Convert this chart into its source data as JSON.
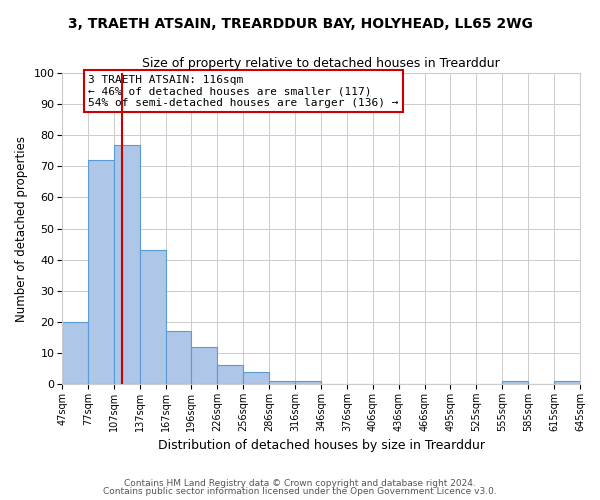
{
  "title": "3, TRAETH ATSAIN, TREARDDUR BAY, HOLYHEAD, LL65 2WG",
  "subtitle": "Size of property relative to detached houses in Trearddur",
  "xlabel": "Distribution of detached houses by size in Trearddur",
  "ylabel": "Number of detached properties",
  "bar_values": [
    20,
    72,
    77,
    43,
    17,
    12,
    6,
    4,
    1,
    1,
    0,
    0,
    0,
    0,
    0,
    0,
    0,
    1,
    0,
    1
  ],
  "bin_edges": [
    47,
    77,
    107,
    137,
    167,
    196,
    226,
    256,
    286,
    316,
    346,
    376,
    406,
    436,
    466,
    495,
    525,
    555,
    585,
    615,
    645
  ],
  "xtick_labels": [
    "47sqm",
    "77sqm",
    "107sqm",
    "137sqm",
    "167sqm",
    "196sqm",
    "226sqm",
    "256sqm",
    "286sqm",
    "316sqm",
    "346sqm",
    "376sqm",
    "406sqm",
    "436sqm",
    "466sqm",
    "495sqm",
    "525sqm",
    "555sqm",
    "585sqm",
    "615sqm",
    "645sqm"
  ],
  "ylim": [
    0,
    100
  ],
  "yticks": [
    0,
    10,
    20,
    30,
    40,
    50,
    60,
    70,
    80,
    90,
    100
  ],
  "bar_color": "#aec6e8",
  "bar_edge_color": "#5b9bd5",
  "grid_color": "#cccccc",
  "bg_color": "#ffffff",
  "vline_x": 116,
  "vline_color": "#cc0000",
  "annotation_text": "3 TRAETH ATSAIN: 116sqm\n← 46% of detached houses are smaller (117)\n54% of semi-detached houses are larger (136) →",
  "annotation_box_color": "#ffffff",
  "annotation_box_edge_color": "#cc0000",
  "footer_line1": "Contains HM Land Registry data © Crown copyright and database right 2024.",
  "footer_line2": "Contains public sector information licensed under the Open Government Licence v3.0."
}
